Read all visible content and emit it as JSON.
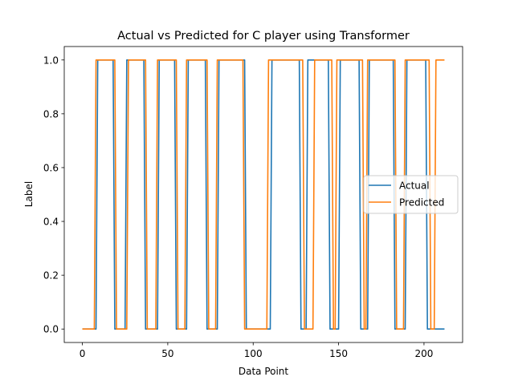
{
  "chart_data": {
    "type": "line",
    "title": "Actual vs Predicted for C player using Transformer",
    "xlabel": "Data Point",
    "ylabel": "Label",
    "xlim": [
      -10.6,
      222.6
    ],
    "ylim": [
      -0.05,
      1.05
    ],
    "xticks": [
      0,
      50,
      100,
      150,
      200
    ],
    "yticks": [
      0.0,
      0.2,
      0.4,
      0.6,
      0.8,
      1.0
    ],
    "grid": false,
    "legend_position": "center-right",
    "series": [
      {
        "name": "Actual",
        "color": "#1f77b4",
        "x": [
          0,
          8,
          9,
          18,
          19,
          25,
          26,
          36,
          37,
          44,
          45,
          54,
          55,
          61,
          62,
          72,
          73,
          79,
          80,
          95,
          96,
          110,
          111,
          127,
          128,
          131,
          132,
          144,
          145,
          150,
          151,
          162,
          163,
          167,
          168,
          182,
          183,
          189,
          190,
          201,
          202,
          212
        ],
        "y": [
          0,
          0,
          1,
          1,
          0,
          0,
          1,
          1,
          0,
          0,
          1,
          1,
          0,
          0,
          1,
          1,
          0,
          0,
          1,
          1,
          0,
          0,
          1,
          1,
          0,
          0,
          1,
          1,
          0,
          0,
          1,
          1,
          0,
          0,
          1,
          1,
          0,
          0,
          1,
          1,
          0,
          0
        ]
      },
      {
        "name": "Predicted",
        "color": "#ff7f0e",
        "x": [
          0,
          7,
          8,
          19,
          20,
          26,
          27,
          37,
          38,
          43,
          44,
          55,
          56,
          60,
          61,
          73,
          74,
          78,
          79,
          94,
          95,
          108,
          109,
          129,
          130,
          135,
          136,
          146,
          147,
          148,
          149,
          164,
          165,
          166,
          167,
          183,
          184,
          188,
          189,
          203,
          204,
          206,
          207,
          212
        ],
        "y": [
          0,
          0,
          1,
          1,
          0,
          0,
          1,
          1,
          0,
          0,
          1,
          1,
          0,
          0,
          1,
          1,
          0,
          0,
          1,
          1,
          0,
          0,
          1,
          1,
          0,
          0,
          1,
          1,
          0,
          0,
          1,
          1,
          0,
          0,
          1,
          1,
          0,
          0,
          1,
          1,
          0,
          0,
          1,
          1
        ]
      }
    ]
  }
}
